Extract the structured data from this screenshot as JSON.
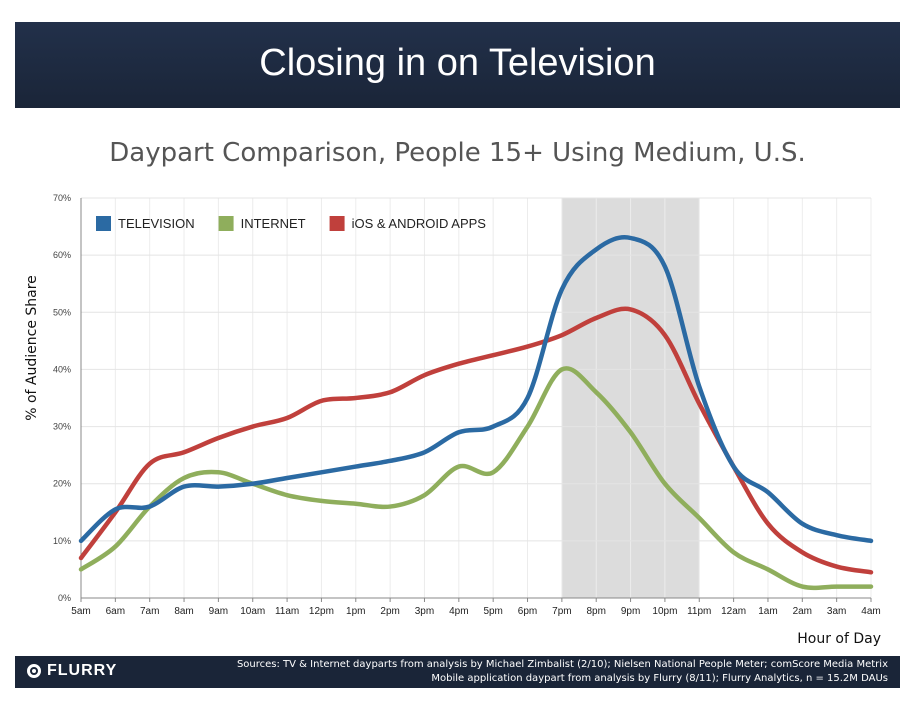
{
  "banner": {
    "title": "Closing in on Television"
  },
  "chart_data": {
    "type": "line",
    "title": "Daypart Comparison, People 15+ Using Medium, U.S.",
    "xlabel": "Hour of Day",
    "ylabel": "% of Audience Share",
    "ylim": [
      0,
      70
    ],
    "yticks": [
      0,
      10,
      20,
      30,
      40,
      50,
      60,
      70
    ],
    "ytick_labels": [
      "0%",
      "10%",
      "20%",
      "30%",
      "40%",
      "50%",
      "60%",
      "70%"
    ],
    "categories": [
      "5am",
      "6am",
      "7am",
      "8am",
      "9am",
      "10am",
      "11am",
      "12pm",
      "1pm",
      "2pm",
      "3pm",
      "4pm",
      "5pm",
      "6pm",
      "7pm",
      "8pm",
      "9pm",
      "10pm",
      "11pm",
      "12am",
      "1am",
      "2am",
      "3am",
      "4am"
    ],
    "highlight": {
      "from": "7pm",
      "to": "11pm"
    },
    "legend_position": "top-left",
    "series": [
      {
        "name": "TELEVISION",
        "color": "#2b6aa3",
        "values": [
          10,
          15.5,
          16,
          19.5,
          19.5,
          20,
          21,
          22,
          23,
          24,
          25.5,
          29,
          30,
          35,
          54,
          61,
          63,
          58,
          37,
          23,
          18.5,
          13,
          11,
          10
        ]
      },
      {
        "name": "INTERNET",
        "color": "#8fae5c",
        "values": [
          5,
          9,
          16,
          21,
          22,
          20,
          18,
          17,
          16.5,
          16,
          18,
          23,
          22,
          30,
          40,
          36,
          29,
          20,
          14,
          8,
          5,
          2,
          2,
          2
        ]
      },
      {
        "name": "iOS & ANDROID APPS",
        "color": "#c0403c",
        "values": [
          7,
          15,
          23.5,
          25.5,
          28,
          30,
          31.5,
          34.5,
          35,
          36,
          39,
          41,
          42.5,
          44,
          46,
          49,
          50.5,
          46,
          34,
          23,
          13,
          8,
          5.5,
          4.5
        ]
      }
    ]
  },
  "footer": {
    "logo_text": "FLURRY",
    "source_line1": "Sources: TV & Internet dayparts from analysis by Michael Zimbalist (2/10); Nielsen National People Meter; comScore Media Metrix",
    "source_line2": "Mobile application daypart from analysis by Flurry (8/11); Flurry Analytics, n = 15.2M DAUs"
  }
}
